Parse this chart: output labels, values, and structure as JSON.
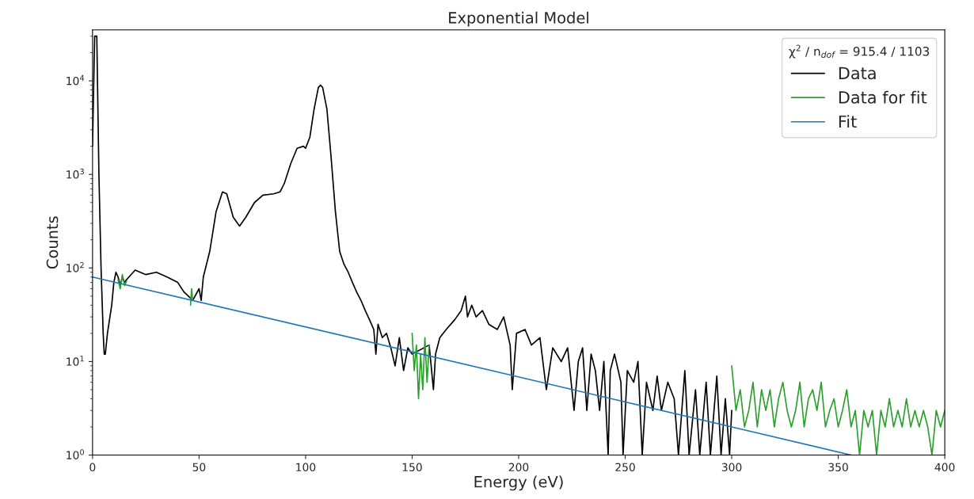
{
  "chart_data": {
    "type": "line",
    "title": "Exponential Model",
    "xlabel": "Energy (eV)",
    "ylabel": "Counts",
    "legend_title": "χ$^{2}$ / n$_{dof}$ = 915.4 / 1103",
    "xlim": [
      0,
      400
    ],
    "xticks": [
      0,
      50,
      100,
      150,
      200,
      250,
      300,
      350,
      400
    ],
    "ylim": [
      1,
      35000
    ],
    "yticks": [
      {
        "value": 1,
        "label": "10$^{0}$"
      },
      {
        "value": 10,
        "label": "10$^{1}$"
      },
      {
        "value": 100,
        "label": "10$^{2}$"
      },
      {
        "value": 1000,
        "label": "10$^{3}$"
      },
      {
        "value": 10000,
        "label": "10$^{4}$"
      }
    ],
    "log": "y",
    "legend": "top right",
    "grid": false,
    "series": [
      {
        "name": "Data",
        "color": "#000000",
        "x": [
          0,
          1,
          2,
          3,
          4,
          5,
          5.5,
          6,
          7,
          9,
          10,
          11,
          12,
          13,
          14,
          15,
          16,
          20,
          25,
          30,
          35,
          40,
          43,
          45,
          47,
          50,
          51,
          52,
          55,
          58,
          61,
          63,
          66,
          69,
          72,
          76,
          80,
          85,
          88,
          90,
          93,
          96,
          99,
          100,
          102,
          104,
          106,
          107,
          108,
          110,
          112,
          114,
          116,
          118,
          120,
          122,
          124,
          126,
          128,
          130,
          132,
          133,
          134,
          136,
          138,
          140,
          142,
          144,
          146,
          148,
          150,
          158,
          160,
          161,
          163,
          166,
          170,
          173,
          175,
          176,
          178,
          180,
          183,
          186,
          190,
          193,
          196,
          197,
          199,
          203,
          206,
          210,
          213,
          216,
          220,
          223,
          226,
          228,
          230,
          232,
          234,
          236,
          238,
          240,
          242,
          243,
          245,
          248,
          249,
          251,
          254,
          256,
          258,
          260,
          263,
          265,
          267,
          270,
          273,
          275,
          278,
          280,
          283,
          285,
          288,
          290,
          293,
          295,
          297,
          299,
          300
        ],
        "values": [
          2000,
          30000,
          30000,
          1000,
          100,
          20,
          12,
          12,
          20,
          40,
          70,
          90,
          80,
          65,
          80,
          70,
          75,
          95,
          85,
          90,
          80,
          70,
          55,
          50,
          45,
          60,
          45,
          80,
          150,
          400,
          650,
          620,
          350,
          280,
          350,
          500,
          600,
          620,
          650,
          800,
          1300,
          1900,
          2000,
          1900,
          2500,
          5000,
          8500,
          9000,
          8500,
          5000,
          1500,
          400,
          150,
          110,
          90,
          70,
          55,
          45,
          35,
          28,
          22,
          12,
          25,
          18,
          20,
          14,
          9,
          18,
          8,
          14,
          12,
          15,
          5,
          12,
          18,
          22,
          28,
          35,
          50,
          30,
          40,
          30,
          35,
          25,
          22,
          30,
          15,
          5,
          20,
          22,
          15,
          18,
          5,
          14,
          10,
          14,
          3,
          10,
          14,
          3,
          12,
          8,
          3,
          10,
          1,
          8,
          12,
          6,
          1,
          8,
          6,
          10,
          1,
          6,
          3,
          7,
          3,
          6,
          4,
          1,
          8,
          1,
          5,
          1,
          6,
          1,
          7,
          1,
          4,
          1,
          3
        ]
      },
      {
        "name": "Data for fit",
        "color": "#2ca02c",
        "x": [
          12,
          13,
          14,
          15,
          16,
          31,
          46,
          46.5,
          47,
          100,
          150,
          151,
          152,
          153,
          154,
          155,
          156,
          157,
          158,
          230,
          300,
          302,
          304,
          306,
          308,
          310,
          312,
          314,
          316,
          318,
          320,
          322,
          324,
          326,
          328,
          330,
          332,
          334,
          336,
          338,
          340,
          342,
          344,
          346,
          348,
          350,
          352,
          354,
          356,
          358,
          360,
          362,
          364,
          366,
          368,
          370,
          372,
          374,
          376,
          378,
          380,
          382,
          384,
          386,
          388,
          390,
          392,
          394,
          396,
          398,
          400
        ],
        "values": [
          75,
          60,
          85,
          65,
          72,
          null,
          40,
          60,
          45,
          null,
          20,
          8,
          15,
          4,
          12,
          5,
          18,
          6,
          15,
          null,
          9,
          3,
          5,
          2,
          3,
          6,
          2,
          5,
          3,
          5,
          2,
          4,
          6,
          3,
          2,
          3,
          6,
          2,
          4,
          5,
          3,
          6,
          2,
          3,
          4,
          2,
          3,
          5,
          2,
          3,
          1,
          3,
          2,
          3,
          1,
          3,
          2,
          4,
          2,
          3,
          2,
          4,
          2,
          3,
          2,
          3,
          2,
          1,
          3,
          2,
          3
        ]
      },
      {
        "name": "Fit",
        "color": "#1f77b4",
        "x": [
          0,
          300,
          356
        ],
        "values": [
          80,
          2,
          1
        ]
      }
    ]
  }
}
